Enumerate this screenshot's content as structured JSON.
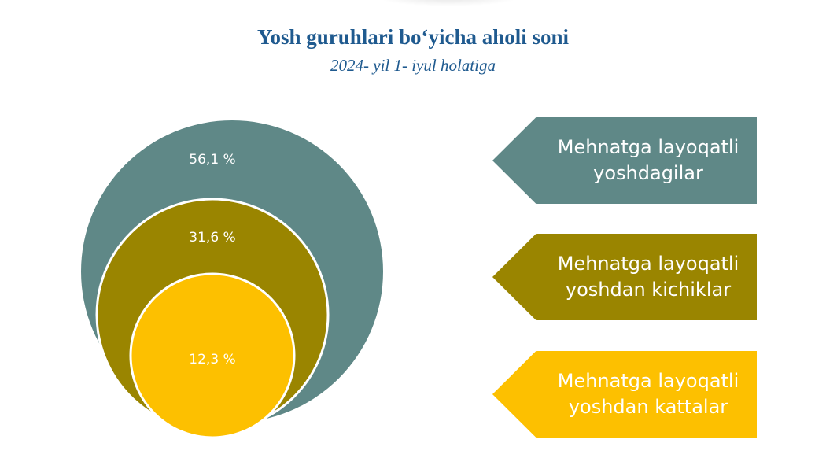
{
  "chart_data": {
    "type": "nested-circles",
    "title": "Yosh guruhlari bo‘yicha aholi soni",
    "subtitle": "2024- yil 1- iyul holatiga",
    "unit": "%",
    "series": [
      {
        "name": "Mehnatga layoqatli yoshdagilar",
        "value": 56.1,
        "label": "56,1 %",
        "color": "#5f8887"
      },
      {
        "name": "Mehnatga layoqatli yoshdan kichiklar",
        "value": 31.6,
        "label": "31,6 %",
        "color": "#9a8500"
      },
      {
        "name": "Mehnatga layoqatli yoshdan kattalar",
        "value": 12.3,
        "label": "12,3 %",
        "color": "#fdc000"
      }
    ]
  }
}
